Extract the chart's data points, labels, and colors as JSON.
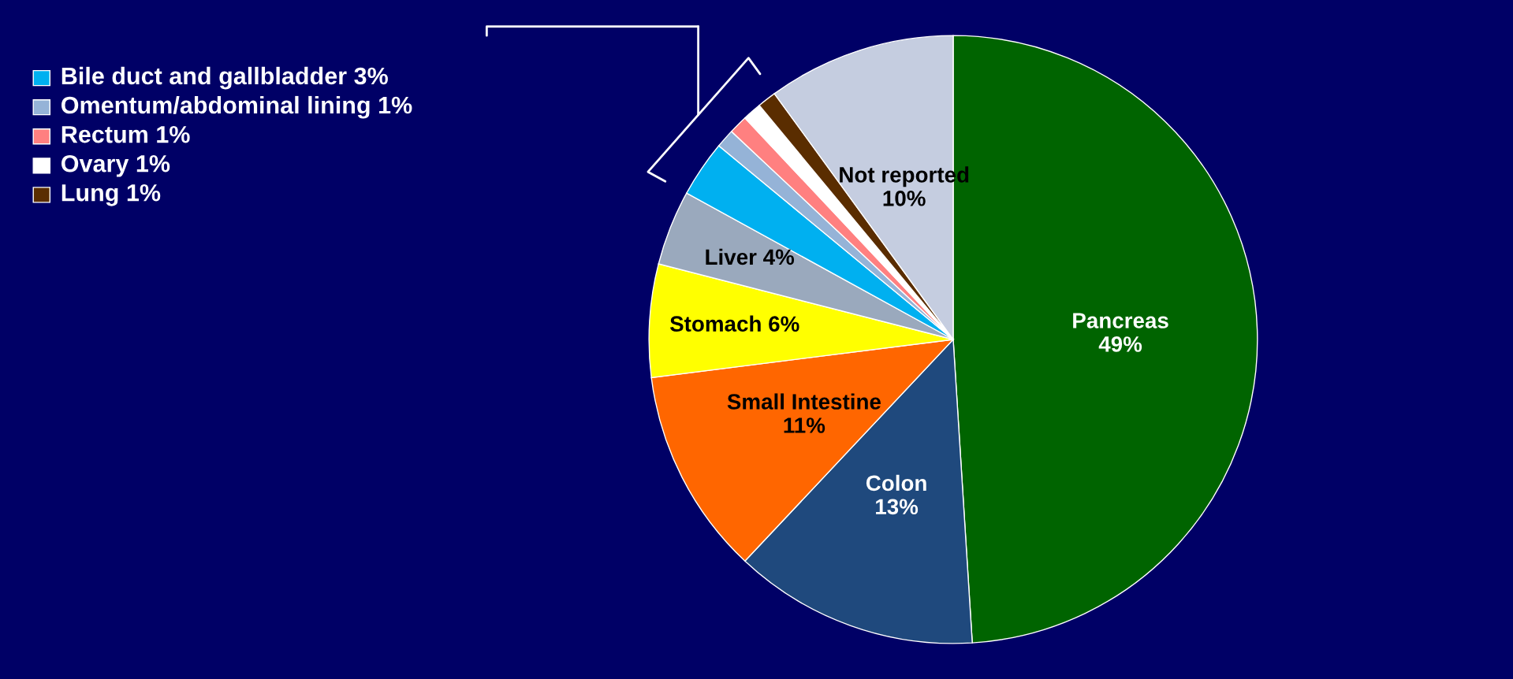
{
  "chart_data": {
    "type": "pie",
    "categories": [
      "Pancreas",
      "Colon",
      "Small Intestine",
      "Stomach",
      "Liver",
      "Bile duct and gallbladder",
      "Omentum/abdominal lining",
      "Rectum",
      "Ovary",
      "Lung",
      "Not reported"
    ],
    "values": [
      49,
      13,
      11,
      6,
      4,
      3,
      1,
      1,
      1,
      1,
      10
    ],
    "colors": [
      "#006400",
      "#1f497d",
      "#ff6600",
      "#ffff00",
      "#9aa9bd",
      "#00b0f0",
      "#95b3d7",
      "#ff8080",
      "#ffffff",
      "#5a2d00",
      "#c5cde0"
    ],
    "legend": "top left",
    "value_labels": [
      "49%",
      "13%",
      "11%",
      "6%",
      "4%",
      "3%",
      "1%",
      "1%",
      "1%",
      "1%",
      "10%"
    ]
  }
}
